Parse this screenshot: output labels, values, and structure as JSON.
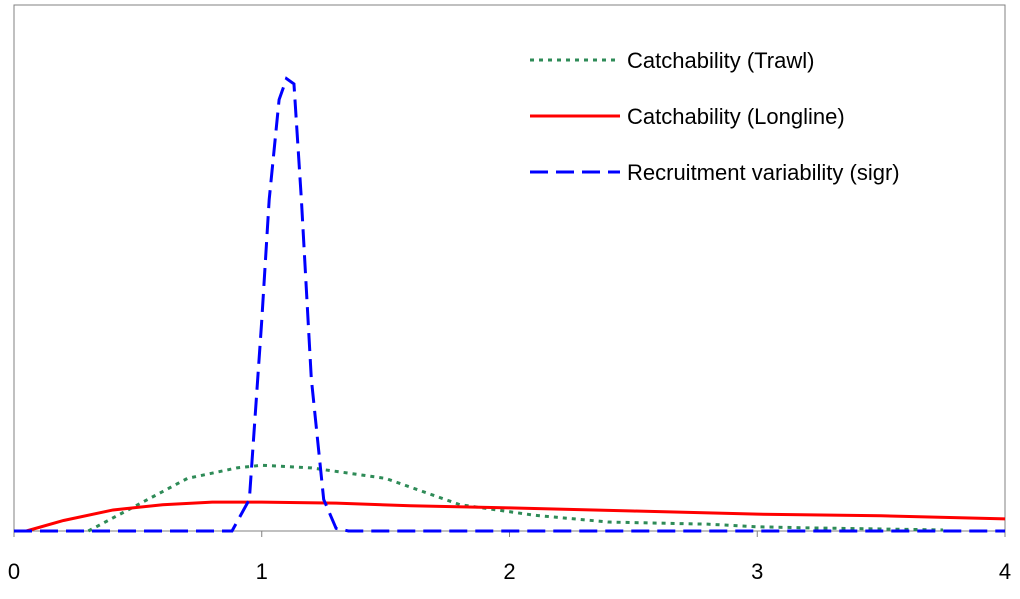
{
  "chart_data": {
    "type": "line",
    "xlim": [
      0,
      4
    ],
    "xticks": [
      0,
      1,
      2,
      3,
      4
    ],
    "ylim": [
      0,
      1
    ],
    "legend": "upper right",
    "series": [
      {
        "name": "Catchability (Trawl)",
        "color": "#2e8b57",
        "style": "dotted",
        "x": [
          0.3,
          0.5,
          0.7,
          0.9,
          1.0,
          1.2,
          1.5,
          1.8,
          2.1,
          2.4,
          2.8,
          3.0,
          3.2,
          3.75
        ],
        "values": [
          0,
          0.05,
          0.1,
          0.12,
          0.125,
          0.12,
          0.1,
          0.05,
          0.03,
          0.017,
          0.013,
          0.008,
          0.006,
          0.002
        ]
      },
      {
        "name": "Catchability (Longline)",
        "color": "#ff0000",
        "style": "solid",
        "x": [
          0.05,
          0.2,
          0.4,
          0.6,
          0.8,
          1.0,
          1.3,
          1.6,
          2.0,
          2.5,
          3.0,
          3.5,
          4.0
        ],
        "values": [
          0,
          0.02,
          0.04,
          0.05,
          0.055,
          0.055,
          0.053,
          0.048,
          0.044,
          0.038,
          0.032,
          0.029,
          0.023
        ]
      },
      {
        "name": "Recruitment variability (sigr)",
        "color": "#0000ff",
        "style": "dashed",
        "x": [
          0,
          0.88,
          0.95,
          1.0,
          1.03,
          1.07,
          1.1,
          1.13,
          1.16,
          1.2,
          1.25,
          1.3,
          1.35,
          4.0
        ],
        "values": [
          0,
          0,
          0.06,
          0.4,
          0.63,
          0.82,
          0.86,
          0.85,
          0.63,
          0.29,
          0.06,
          0.005,
          0,
          0
        ]
      }
    ]
  }
}
